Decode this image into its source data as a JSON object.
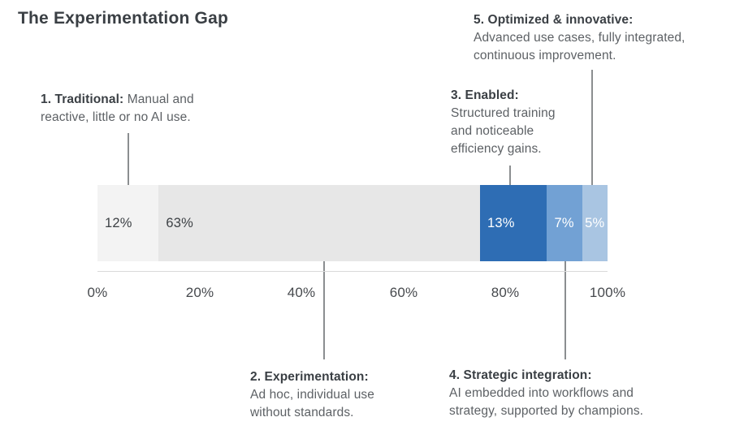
{
  "title": "The Experimentation Gap",
  "chart_data": {
    "type": "bar",
    "variant": "horizontal-stacked",
    "title": "The Experimentation Gap",
    "categories": [
      "1. Traditional",
      "2. Experimentation",
      "3. Enabled",
      "4. Strategic integration",
      "5. Optimized & innovative"
    ],
    "values": [
      12,
      63,
      13,
      7,
      5
    ],
    "unit": "%",
    "xlim": [
      0,
      100
    ],
    "x_ticks": [
      "0%",
      "20%",
      "40%",
      "60%",
      "80%",
      "100%"
    ],
    "segment_colors": [
      "#f3f3f3",
      "#e7e7e7",
      "#2e6db4",
      "#72a1d4",
      "#a9c5e2"
    ],
    "segment_label_colors": [
      "#3d4145",
      "#3d4145",
      "#ffffff",
      "#ffffff",
      "#ffffff"
    ],
    "grid": false,
    "legend": false
  },
  "bar_labels": [
    "12%",
    "63%",
    "13%",
    "7%",
    "5%"
  ],
  "axis": {
    "ticks": [
      "0%",
      "20%",
      "40%",
      "60%",
      "80%",
      "100%"
    ]
  },
  "annotations": [
    {
      "heading": "1. Traditional:",
      "body": "Manual and reactive, little or no AI use."
    },
    {
      "heading": "2. Experimentation:",
      "body": "Ad hoc, individual use without standards."
    },
    {
      "heading": "3. Enabled:",
      "body": "Structured training and noticeable efficiency gains."
    },
    {
      "heading": "4. Strategic integration:",
      "body": "AI embedded into workflows and strategy, supported by champions."
    },
    {
      "heading": "5. Optimized & innovative:",
      "body": "Advanced use cases, fully integrated, continuous improvement."
    }
  ],
  "colors": {
    "title_text": "#3a3f44",
    "body_text": "#5d6165",
    "axis_text": "#46494d",
    "connector_line": "#8b8e90",
    "axis_line": "#dadada",
    "background": "#ffffff"
  }
}
